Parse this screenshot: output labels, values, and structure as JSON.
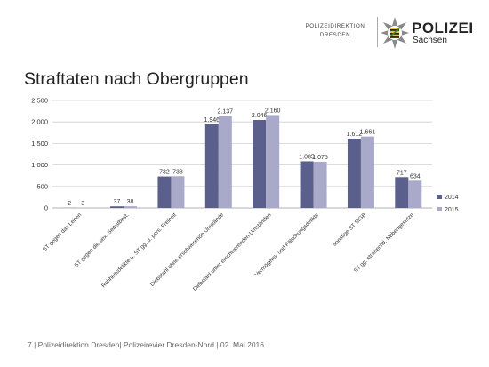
{
  "header": {
    "org_line1": "POLIZEIDIREKTION",
    "org_line2": "DRESDEN",
    "brand": "POLIZEI",
    "brand_sub": "Sachsen"
  },
  "slide": {
    "title": "Straftaten nach Obergruppen",
    "footer": "7  |  Polizeidirektion Dresden| Polizeirevier Dresden-Nord | 02. Mai 2016"
  },
  "colors": {
    "series_2014": "#5b5f8c",
    "series_2015": "#a9aac9",
    "grid": "#d0d0d0"
  },
  "chart_data": {
    "type": "bar",
    "categories": [
      "ST gegen das Leben",
      "ST gegen die sex. Selbstbest.",
      "Rohheitsdelikte u. ST gg. d. pers. Freiheit",
      "Diebstahl ohne erschwerende Umstände",
      "Diebstahl unter erschwerenden Umständen",
      "Vermögens- und Fälschungsdelikte",
      "sonstige ST StGB",
      "ST gg. strafrechtl. Nebengesetze"
    ],
    "series": [
      {
        "name": "2014",
        "values": [
          2,
          37,
          732,
          1946,
          2046,
          1085,
          1612,
          717
        ],
        "labels": [
          "2",
          "37",
          "732",
          "1.946",
          "2.046",
          "1.085",
          "1.612",
          "717"
        ]
      },
      {
        "name": "2015",
        "values": [
          3,
          38,
          738,
          2137,
          2160,
          1075,
          1661,
          634
        ],
        "labels": [
          "3",
          "38",
          "738",
          "2.137",
          "2.160",
          "1.075",
          "1.661",
          "634"
        ]
      }
    ],
    "yticks": [
      0,
      500,
      1000,
      1500,
      2000,
      2500
    ],
    "ytick_labels": [
      "0",
      "500",
      "1.000",
      "1.500",
      "2.000",
      "2.500"
    ],
    "ylim": [
      0,
      2500
    ],
    "grid": true,
    "legend_position": "right"
  }
}
